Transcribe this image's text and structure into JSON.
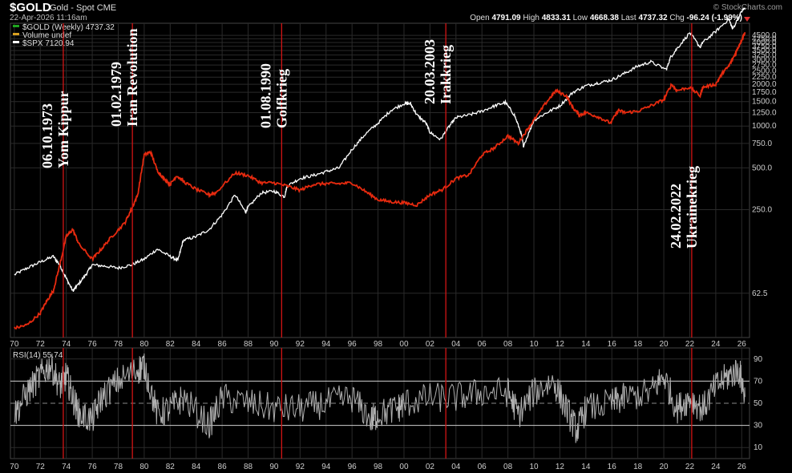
{
  "header": {
    "symbol": "$GOLD",
    "description": "Gold - Spot CME",
    "datetime": "22-Apr-2026 11:16am",
    "copyright": "© StockCharts.com",
    "ohlc": {
      "open_label": "Open",
      "open": "4791.09",
      "high_label": "High",
      "high": "4833.31",
      "low_label": "Low",
      "low": "4668.38",
      "last_label": "Last",
      "last": "4737.32",
      "chg_label": "Chg",
      "chg": "-96.24 (-1.99%)"
    }
  },
  "colors": {
    "gold": "#e62a0f",
    "gold_alt": "#d9a020",
    "spx": "#ffffff",
    "event_line": "#d11414",
    "rsi": "#b0b0b0",
    "grid": "#2a2a2a"
  },
  "chart_data": [
    {
      "type": "line",
      "panel": "price",
      "scale": "log",
      "legend": [
        {
          "name": "$GOLD (Weekly) 4737.32",
          "color": "#1fa51f"
        },
        {
          "name": "Volume undef",
          "color": "#d9a020"
        },
        {
          "name": "$SPX 7120.94",
          "color": "#ffffff"
        }
      ],
      "y_ticks": [
        "4500.0",
        "4250.0",
        "4000.0",
        "3750.0",
        "3500.0",
        "3250.0",
        "3000.0",
        "2750.0",
        "2500.0",
        "2250.0",
        "2000.0",
        "1750.0",
        "1500.0",
        "1250.0",
        "1000.0",
        "750.0",
        "500.0",
        "250.0",
        "62.5"
      ],
      "x_ticks": [
        "70",
        "72",
        "74",
        "76",
        "78",
        "80",
        "82",
        "84",
        "86",
        "88",
        "90",
        "92",
        "94",
        "96",
        "98",
        "00",
        "02",
        "04",
        "06",
        "08",
        "10",
        "12",
        "14",
        "16",
        "18",
        "20",
        "22",
        "24",
        "26"
      ],
      "gold_series": {
        "name": "$GOLD",
        "x": [
          1970.0,
          1971.0,
          1972.0,
          1972.5,
          1973.0,
          1973.5,
          1974.0,
          1974.5,
          1975.0,
          1976.0,
          1976.7,
          1977.5,
          1978.5,
          1979.0,
          1979.5,
          1980.0,
          1980.5,
          1981.0,
          1981.5,
          1982.0,
          1982.5,
          1983.0,
          1984.0,
          1985.0,
          1985.5,
          1987.0,
          1988.0,
          1989.0,
          1990.0,
          1991.0,
          1992.0,
          1993.0,
          1994.0,
          1995.0,
          1996.0,
          1997.0,
          1998.0,
          1999.0,
          2000.0,
          2001.0,
          2002.0,
          2003.0,
          2004.0,
          2005.0,
          2006.0,
          2007.0,
          2008.0,
          2008.8,
          2009.5,
          2010.0,
          2011.0,
          2011.7,
          2012.5,
          2013.0,
          2013.5,
          2014.0,
          2015.0,
          2015.9,
          2016.5,
          2017.0,
          2018.0,
          2019.0,
          2020.0,
          2020.6,
          2021.0,
          2022.0,
          2022.8,
          2023.0,
          2024.0,
          2024.5,
          2025.0,
          2025.5,
          2025.9,
          2026.25
        ],
        "y": [
          35,
          37,
          45,
          55,
          65,
          100,
          160,
          180,
          140,
          110,
          130,
          160,
          200,
          250,
          320,
          620,
          650,
          480,
          420,
          380,
          440,
          400,
          350,
          320,
          330,
          460,
          440,
          390,
          390,
          370,
          345,
          380,
          385,
          385,
          390,
          340,
          295,
          285,
          280,
          270,
          320,
          350,
          420,
          445,
          620,
          700,
          850,
          750,
          950,
          1100,
          1500,
          1800,
          1650,
          1350,
          1200,
          1250,
          1160,
          1050,
          1300,
          1250,
          1280,
          1400,
          1550,
          2000,
          1800,
          1900,
          1650,
          1900,
          2000,
          2400,
          2700,
          3300,
          4000,
          4737
        ]
      },
      "spx_series": {
        "name": "$SPX",
        "x": [
          1970.0,
          1971.0,
          1972.0,
          1973.0,
          1973.5,
          1974.0,
          1974.5,
          1974.8,
          1975.5,
          1976.0,
          1977.0,
          1978.0,
          1979.0,
          1980.0,
          1981.0,
          1982.0,
          1982.6,
          1983.0,
          1984.0,
          1985.0,
          1986.0,
          1987.0,
          1987.8,
          1988.0,
          1989.0,
          1990.0,
          1990.8,
          1991.0,
          1992.0,
          1993.0,
          1994.0,
          1995.0,
          1996.0,
          1997.0,
          1998.0,
          1999.0,
          2000.0,
          2000.5,
          2001.0,
          2001.7,
          2002.0,
          2002.8,
          2003.5,
          2004.0,
          2005.0,
          2006.0,
          2007.0,
          2007.8,
          2008.5,
          2009.0,
          2009.2,
          2010.0,
          2011.0,
          2012.0,
          2013.0,
          2014.0,
          2015.0,
          2016.0,
          2017.0,
          2018.0,
          2019.0,
          2020.2,
          2020.5,
          2021.0,
          2022.0,
          2022.8,
          2023.0,
          2024.0,
          2025.0,
          2025.3,
          2026.0,
          2026.25
        ],
        "y": [
          85,
          95,
          105,
          115,
          100,
          80,
          65,
          70,
          85,
          100,
          98,
          95,
          100,
          110,
          130,
          115,
          108,
          150,
          160,
          180,
          230,
          320,
          240,
          260,
          330,
          340,
          310,
          370,
          420,
          440,
          470,
          500,
          680,
          870,
          1050,
          1300,
          1450,
          1450,
          1200,
          1050,
          900,
          800,
          1000,
          1150,
          1200,
          1280,
          1400,
          1480,
          1200,
          900,
          720,
          1100,
          1250,
          1400,
          1750,
          1950,
          2050,
          2150,
          2400,
          2700,
          2900,
          2550,
          3100,
          3600,
          4700,
          3700,
          4000,
          4800,
          5900,
          5000,
          6700,
          7120
        ]
      },
      "events": [
        {
          "x": 1973.77,
          "date": "06.10.1973",
          "label": "Yom Kippur"
        },
        {
          "x": 1979.09,
          "date": "01.02.1979",
          "label": "Iran Revolution"
        },
        {
          "x": 1990.58,
          "date": "01.08.1990",
          "label": "Golfkrieg"
        },
        {
          "x": 2003.22,
          "date": "20.03.2003",
          "label": "Irakkrieg"
        },
        {
          "x": 2022.15,
          "date": "24.02.2022",
          "label": "Ukrainekrieg"
        }
      ]
    },
    {
      "type": "line",
      "panel": "rsi",
      "title": "RSI(14) 55.74",
      "ylim": [
        0,
        100
      ],
      "y_ticks": [
        "90",
        "70",
        "50",
        "30",
        "10"
      ],
      "x_ticks": [
        "70",
        "72",
        "74",
        "76",
        "78",
        "80",
        "82",
        "84",
        "86",
        "88",
        "90",
        "92",
        "94",
        "96",
        "98",
        "00",
        "02",
        "04",
        "06",
        "08",
        "10",
        "12",
        "14",
        "16",
        "18",
        "20",
        "22",
        "24",
        "26"
      ],
      "series": [
        {
          "name": "RSI(14)",
          "x": [
            1970.0,
            1971.0,
            1972.0,
            1972.8,
            1973.5,
            1974.0,
            1974.5,
            1975.0,
            1976.0,
            1976.7,
            1978.0,
            1979.5,
            1980.0,
            1981.0,
            1982.0,
            1983.0,
            1985.0,
            1986.0,
            1988.0,
            1990.0,
            1992.0,
            1994.0,
            1996.0,
            1997.5,
            1998.0,
            1999.5,
            2000.0,
            2002.0,
            2004.0,
            2006.0,
            2008.0,
            2008.8,
            2010.0,
            2011.5,
            2012.5,
            2013.3,
            2014.0,
            2016.0,
            2017.0,
            2019.0,
            2020.0,
            2021.0,
            2022.0,
            2023.0,
            2024.0,
            2025.0,
            2025.8,
            2026.25
          ],
          "y": [
            40,
            60,
            75,
            85,
            65,
            75,
            55,
            40,
            35,
            55,
            70,
            80,
            85,
            40,
            45,
            55,
            30,
            55,
            50,
            45,
            45,
            50,
            55,
            35,
            40,
            45,
            50,
            55,
            55,
            60,
            60,
            40,
            60,
            70,
            45,
            25,
            45,
            50,
            55,
            60,
            75,
            45,
            55,
            45,
            65,
            75,
            80,
            55.74
          ]
        }
      ]
    }
  ]
}
